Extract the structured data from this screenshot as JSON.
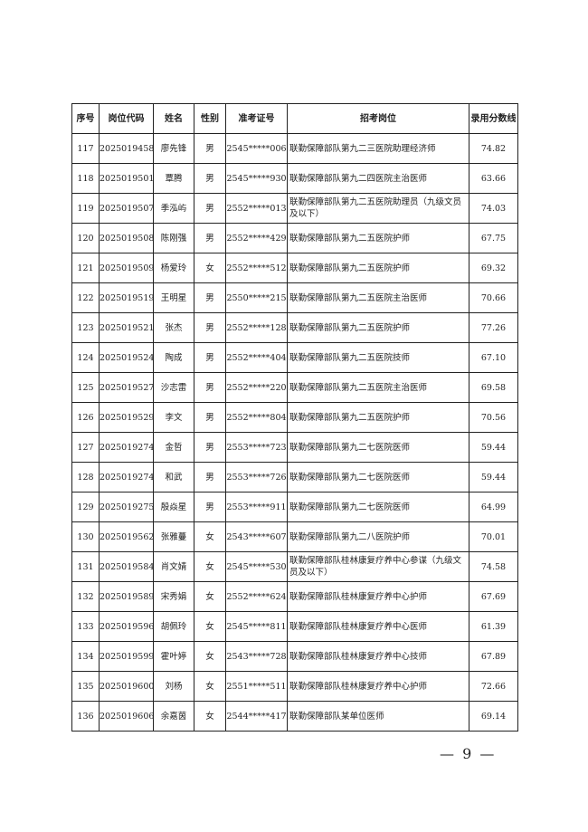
{
  "table": {
    "headers": [
      "序号",
      "岗位代码",
      "姓名",
      "性别",
      "准考证号",
      "招考岗位",
      "录用分数线"
    ],
    "rows": [
      [
        "117",
        "2025019458",
        "廖先锋",
        "男",
        "2545*****006",
        "联勤保障部队第九二三医院助理经济师",
        "74.82"
      ],
      [
        "118",
        "2025019501",
        "覃腾",
        "男",
        "2545*****930",
        "联勤保障部队第九二四医院主治医师",
        "63.66"
      ],
      [
        "119",
        "2025019507",
        "季泓屿",
        "男",
        "2552*****013",
        "联勤保障部队第九二五医院助理员（九级文员及以下）",
        "74.03"
      ],
      [
        "120",
        "2025019508",
        "陈刚强",
        "男",
        "2552*****429",
        "联勤保障部队第九二五医院护师",
        "67.75"
      ],
      [
        "121",
        "2025019509",
        "杨爱玲",
        "女",
        "2552*****512",
        "联勤保障部队第九二五医院护师",
        "69.32"
      ],
      [
        "122",
        "2025019519",
        "王明星",
        "男",
        "2550*****215",
        "联勤保障部队第九二五医院主治医师",
        "70.66"
      ],
      [
        "123",
        "2025019521",
        "张杰",
        "男",
        "2552*****128",
        "联勤保障部队第九二五医院护师",
        "77.26"
      ],
      [
        "124",
        "2025019524",
        "陶成",
        "男",
        "2552*****404",
        "联勤保障部队第九二五医院技师",
        "67.10"
      ],
      [
        "125",
        "2025019527",
        "沙志雷",
        "男",
        "2552*****220",
        "联勤保障部队第九二五医院主治医师",
        "69.58"
      ],
      [
        "126",
        "2025019529",
        "李文",
        "男",
        "2552*****804",
        "联勤保障部队第九二五医院护师",
        "70.56"
      ],
      [
        "127",
        "2025019274",
        "金哲",
        "男",
        "2553*****723",
        "联勤保障部队第九二七医院医师",
        "59.44"
      ],
      [
        "128",
        "2025019274",
        "和武",
        "男",
        "2553*****726",
        "联勤保障部队第九二七医院医师",
        "59.44"
      ],
      [
        "129",
        "2025019275",
        "殷焱星",
        "男",
        "2553*****911",
        "联勤保障部队第九二七医院医师",
        "64.99"
      ],
      [
        "130",
        "2025019562",
        "张雅蔓",
        "女",
        "2543*****607",
        "联勤保障部队第九二八医院护师",
        "70.01"
      ],
      [
        "131",
        "2025019584",
        "肖文婧",
        "女",
        "2545*****530",
        "联勤保障部队桂林康复疗养中心参谋（九级文员及以下）",
        "74.58"
      ],
      [
        "132",
        "2025019589",
        "宋秀娟",
        "女",
        "2552*****624",
        "联勤保障部队桂林康复疗养中心护师",
        "67.69"
      ],
      [
        "133",
        "2025019596",
        "胡佩玲",
        "女",
        "2545*****811",
        "联勤保障部队桂林康复疗养中心医师",
        "61.39"
      ],
      [
        "134",
        "2025019599",
        "霍叶婷",
        "女",
        "2543*****728",
        "联勤保障部队桂林康复疗养中心技师",
        "67.89"
      ],
      [
        "135",
        "2025019600",
        "刘杨",
        "女",
        "2551*****511",
        "联勤保障部队桂林康复疗养中心护师",
        "72.66"
      ],
      [
        "136",
        "2025019606",
        "余嘉茵",
        "女",
        "2544*****417",
        "联勤保障部队某单位医师",
        "69.14"
      ]
    ]
  },
  "page_number": "— 9 —"
}
